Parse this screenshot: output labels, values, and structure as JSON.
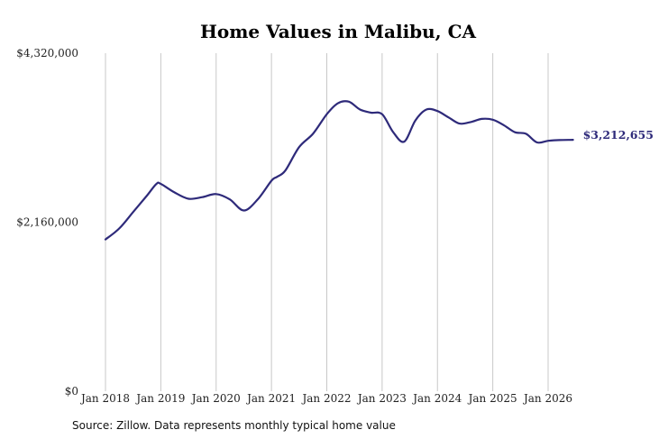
{
  "chart_data": {
    "type": "line",
    "title": "Home Values in Malibu, CA",
    "xlabel": "",
    "ylabel": "",
    "ylim": [
      0,
      4320000
    ],
    "y_ticks": [
      "$4,320,000",
      "$2,160,000",
      "$0"
    ],
    "y_tick_values": [
      4320000,
      2160000,
      0
    ],
    "x_ticks": [
      "Jan 2018",
      "Jan 2019",
      "Jan 2020",
      "Jan 2021",
      "Jan 2022",
      "Jan 2023",
      "Jan 2024",
      "Jan 2025",
      "Jan 2026"
    ],
    "x_tick_values": [
      2018.0,
      2019.0,
      2020.0,
      2021.0,
      2022.0,
      2023.0,
      2024.0,
      2025.0,
      2026.0
    ],
    "xlim": [
      2018.0,
      2026.5
    ],
    "grid": "vertical",
    "line_color": "#2e2a7a",
    "end_label": "$3,212,655",
    "x": [
      2018.0,
      2018.25,
      2018.5,
      2018.75,
      2018.92,
      2019.0,
      2019.25,
      2019.5,
      2019.75,
      2020.0,
      2020.25,
      2020.5,
      2020.75,
      2021.0,
      2021.1,
      2021.25,
      2021.5,
      2021.75,
      2022.0,
      2022.2,
      2022.4,
      2022.6,
      2022.8,
      2023.0,
      2023.2,
      2023.4,
      2023.6,
      2023.8,
      2024.0,
      2024.2,
      2024.4,
      2024.6,
      2024.8,
      2025.0,
      2025.2,
      2025.4,
      2025.6,
      2025.8,
      2026.0,
      2026.2,
      2026.45
    ],
    "y": [
      1940000,
      2080000,
      2290000,
      2500000,
      2650000,
      2650000,
      2540000,
      2460000,
      2480000,
      2520000,
      2450000,
      2310000,
      2450000,
      2690000,
      2740000,
      2820000,
      3120000,
      3290000,
      3540000,
      3680000,
      3700000,
      3600000,
      3560000,
      3540000,
      3310000,
      3190000,
      3460000,
      3600000,
      3580000,
      3500000,
      3420000,
      3440000,
      3480000,
      3470000,
      3400000,
      3310000,
      3290000,
      3180000,
      3200000,
      3210000,
      3212655
    ]
  },
  "source_text": "Source: Zillow. Data represents monthly typical home value"
}
